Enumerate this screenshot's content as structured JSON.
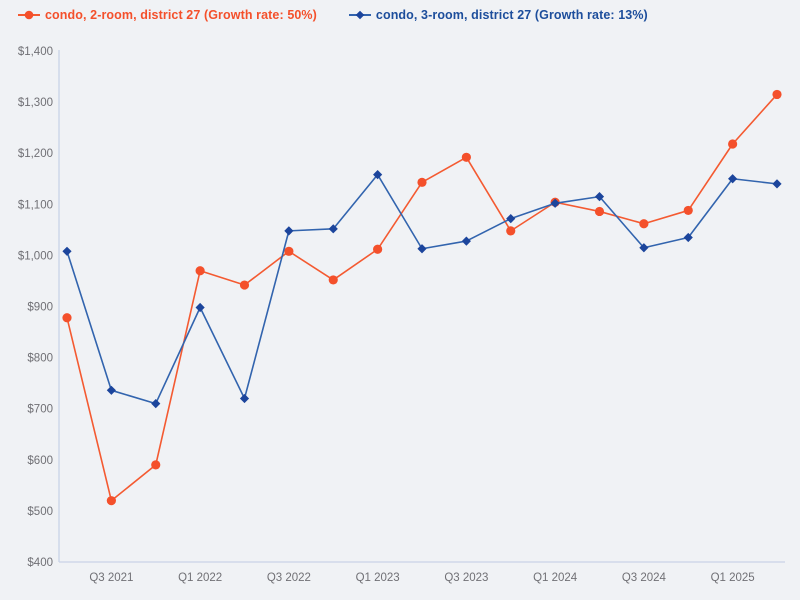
{
  "page": {
    "background": "#f0f2f5"
  },
  "chart_data": {
    "type": "line",
    "x": [
      "Q2 2021",
      "Q3 2021",
      "Q4 2021",
      "Q1 2022",
      "Q2 2022",
      "Q3 2022",
      "Q4 2022",
      "Q1 2023",
      "Q2 2023",
      "Q3 2023",
      "Q4 2023",
      "Q1 2024",
      "Q2 2024",
      "Q3 2024",
      "Q4 2024",
      "Q1 2025",
      "Q2 2025"
    ],
    "x_tick_labels": [
      "Q3 2021",
      "Q1 2022",
      "Q3 2022",
      "Q1 2023",
      "Q3 2023",
      "Q1 2024",
      "Q3 2024",
      "Q1 2025"
    ],
    "series": [
      {
        "name": "condo, 2-room, district 27 (Growth rate: 50%)",
        "marker": "circle",
        "marker_color": "#f4502b",
        "line_color": "#f45a31",
        "label_color": "#f4502b",
        "values": [
          878,
          520,
          590,
          970,
          942,
          1008,
          952,
          1012,
          1143,
          1192,
          1048,
          1104,
          1086,
          1062,
          1088,
          1218,
          1315
        ]
      },
      {
        "name": "condo, 3-room, district 27 (Growth rate: 13%)",
        "marker": "diamond",
        "marker_color": "#1c459c",
        "line_color": "#3264ae",
        "label_color": "#1d4e9c",
        "values": [
          1008,
          736,
          710,
          898,
          720,
          1048,
          1052,
          1158,
          1013,
          1028,
          1072,
          1102,
          1115,
          1015,
          1035,
          1150,
          1140
        ]
      }
    ],
    "title": "",
    "xlabel": "",
    "ylabel": "",
    "ylim": [
      400,
      1400
    ],
    "y_tick_step": 100,
    "y_tick_prefix": "$",
    "y_tick_labels": [
      "$400",
      "$500",
      "$600",
      "$700",
      "$800",
      "$900",
      "$1,000",
      "$1,100",
      "$1,200",
      "$1,300",
      "$1,400"
    ],
    "grid": false,
    "legend_position": "top-left",
    "axis_color": "#c9d3e8",
    "tick_label_color": "#707075"
  }
}
